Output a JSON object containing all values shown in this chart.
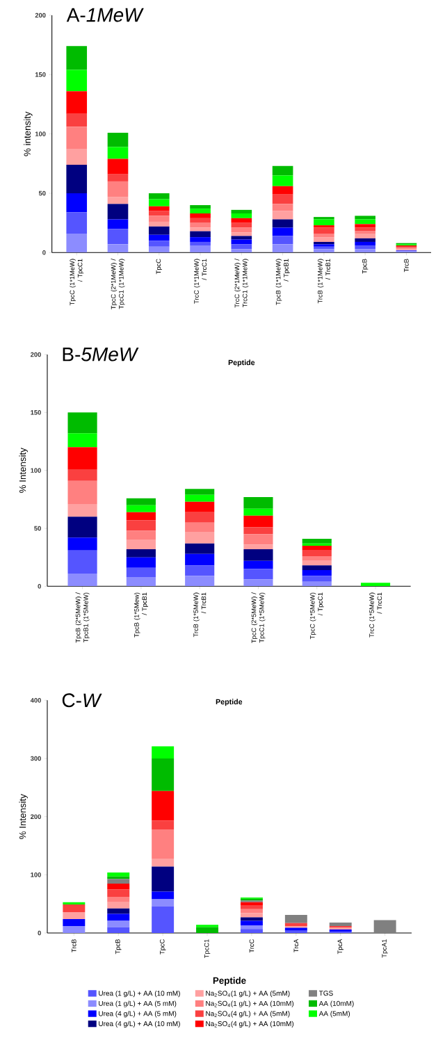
{
  "chart_data": [
    {
      "type": "bar",
      "stacked": true,
      "title": "A-*1MeW*",
      "xlabel": "Peptide",
      "ylabel": "% intensity",
      "legend": false,
      "categories": [
        "TpcC (1*1MeW) / TpcC1",
        "TpcC (2*1MeW) / TpcC1 (1*1MeW)",
        "TpcC",
        "TrcC (1*1MeW) / TrcC1",
        "TrcC (2*1MeW) / TrcC1 (1*1MeW)",
        "TpcB (1*1MeW) / TpcB1",
        "TrcB (1*1MeW) / TrcB1",
        "TpcB",
        "TrcB"
      ],
      "ylim": [
        0,
        200
      ],
      "yticks": [
        0,
        50,
        100,
        150,
        200
      ],
      "series": [
        {
          "color": "#8c8cff",
          "values": [
            16,
            7,
            5,
            6,
            3,
            7,
            3,
            3,
            1
          ]
        },
        {
          "color": "#5555ff",
          "values": [
            18,
            13,
            5,
            3,
            4,
            7,
            2,
            3,
            1
          ]
        },
        {
          "color": "#0000ff",
          "values": [
            16,
            8,
            5,
            4,
            4,
            7,
            2,
            3,
            null
          ]
        },
        {
          "color": "#000080",
          "values": [
            24,
            13,
            7,
            5,
            3,
            7,
            2,
            3,
            null
          ]
        },
        {
          "color": "#ffa0a0",
          "values": [
            13,
            6,
            4,
            3,
            3,
            7,
            4,
            4,
            1
          ]
        },
        {
          "color": "#ff8080",
          "values": [
            19,
            13,
            5,
            4,
            4,
            6,
            3,
            2,
            1
          ]
        },
        {
          "color": "#fa4040",
          "values": [
            11,
            6,
            4,
            4,
            4,
            8,
            5,
            3,
            1
          ]
        },
        {
          "color": "#ff0000",
          "values": [
            19,
            13,
            4,
            4,
            4,
            7,
            2,
            3,
            1
          ]
        },
        {
          "color": "#00ff00",
          "values": [
            18,
            10,
            6,
            4,
            4,
            9,
            5,
            4,
            1
          ]
        },
        {
          "color": "#00bb00",
          "values": [
            20,
            12,
            5,
            3,
            3,
            8,
            2,
            3,
            1
          ]
        }
      ]
    },
    {
      "type": "bar",
      "stacked": true,
      "title": "B-*5MeW*",
      "xlabel": "Peptide",
      "ylabel": "% Intensity",
      "legend": false,
      "categories": [
        "TpcB (2*5MeW) / TpcB1 (1*5MeW)",
        "TpcB (1*5Mew) / TpcB1",
        "TrcB (1*5MeW) / TrcB1",
        "TpcC (2*5MeW) / TpcC1 (1*5MeW)",
        "TpcC (1*5MeW) / TpcC1",
        "TrcC (1*5MeW) / TrcC1"
      ],
      "ylim": [
        0,
        200
      ],
      "yticks": [
        0,
        50,
        100,
        150,
        200
      ],
      "series": [
        {
          "color": "#8c8cff",
          "values": [
            11,
            8,
            9,
            6,
            4,
            null
          ]
        },
        {
          "color": "#5555ff",
          "values": [
            20,
            8,
            9,
            9,
            5,
            null
          ]
        },
        {
          "color": "#0000ff",
          "values": [
            11,
            9,
            10,
            7,
            5,
            null
          ]
        },
        {
          "color": "#000080",
          "values": [
            18,
            7,
            9,
            10,
            4,
            null
          ]
        },
        {
          "color": "#ffa0a0",
          "values": [
            11,
            8,
            10,
            4,
            4,
            null
          ]
        },
        {
          "color": "#ff8080",
          "values": [
            20,
            8,
            8,
            9,
            4,
            null
          ]
        },
        {
          "color": "#fa4040",
          "values": [
            10,
            9,
            9,
            6,
            5,
            null
          ]
        },
        {
          "color": "#ff0000",
          "values": [
            19,
            7,
            9,
            10,
            4,
            null
          ]
        },
        {
          "color": "#00ff00",
          "values": [
            12,
            6,
            6,
            6,
            2,
            3
          ]
        },
        {
          "color": "#00bb00",
          "values": [
            18,
            6,
            5,
            10,
            4,
            null
          ]
        }
      ]
    },
    {
      "type": "bar",
      "stacked": true,
      "title": "C-*W*",
      "xlabel": "Peptide",
      "ylabel": "% Intensity",
      "legend": "bottom",
      "categories": [
        "TrcB",
        "TpcB",
        "TpcC",
        "TpcC1",
        "TrcC",
        "TrcA",
        "TpcA",
        "TpcA1"
      ],
      "ylim": [
        0,
        400
      ],
      "yticks": [
        0,
        100,
        200,
        300,
        400
      ],
      "series": [
        {
          "name": "Urea (1 g/L) + AA (10 mM)",
          "color": "#5555ff",
          "values": [
            null,
            10,
            46,
            null,
            7,
            4,
            2,
            null
          ]
        },
        {
          "name": "Urea (1 g/L) + AA (5 mM)",
          "color": "#8c8cff",
          "values": [
            12,
            11,
            12,
            null,
            6,
            null,
            null,
            null
          ]
        },
        {
          "name": "Urea (4 g/L) + AA (5 mM)",
          "color": "#0000ff",
          "values": [
            12,
            12,
            13,
            null,
            8,
            5,
            4,
            null
          ]
        },
        {
          "name": "Urea (4 g/L) + AA (10 mM)",
          "color": "#000080",
          "values": [
            null,
            9,
            43,
            null,
            6,
            null,
            null,
            null
          ]
        },
        {
          "name": "Na$_{2}$SO$_{4}$(1 g/L) + AA (5mM)",
          "color": "#ffa0a0",
          "values": [
            12,
            11,
            13,
            null,
            7,
            3,
            3,
            null
          ]
        },
        {
          "name": "Na$_{2}$SO$_{4}$(1 g/L) + AA (10mM)",
          "color": "#ff8080",
          "values": [
            null,
            9,
            51,
            null,
            7,
            null,
            null,
            null
          ]
        },
        {
          "name": "Na$_{2}$SO$_{4}$(4 g/L) + AA (5mM)",
          "color": "#fa4040",
          "values": [
            13,
            13,
            15,
            null,
            6,
            5,
            3,
            null
          ]
        },
        {
          "name": "Na$_{2}$SO$_{4}$(4 g/L) + AA (10mM)",
          "color": "#ff0000",
          "values": [
            null,
            10,
            51,
            null,
            6,
            null,
            null,
            null
          ]
        },
        {
          "name": "TGS",
          "color": "#808080",
          "values": [
            null,
            8,
            null,
            null,
            3,
            14,
            6,
            22
          ]
        },
        {
          "name": "AA (10mM)",
          "color": "#00bb00",
          "values": [
            null,
            4,
            56,
            10,
            3,
            null,
            null,
            null
          ]
        },
        {
          "name": "AA (5mM)",
          "color": "#00ff00",
          "values": [
            4,
            7,
            21,
            4,
            2,
            null,
            null,
            null
          ]
        }
      ]
    }
  ]
}
